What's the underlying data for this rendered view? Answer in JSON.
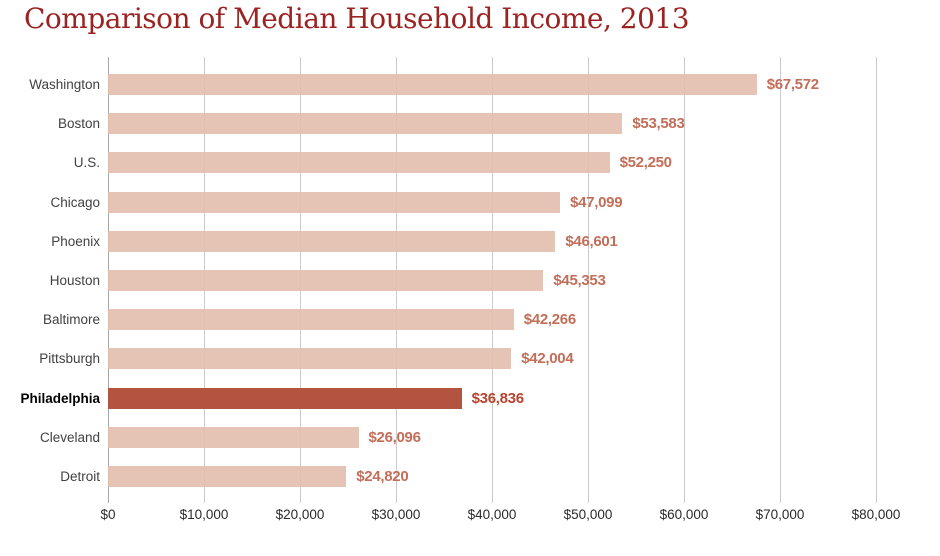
{
  "title": "Comparison of Median Household Income, 2013",
  "colors": {
    "title_text": "#9b2423",
    "bar_default": "#e5c4b5",
    "bar_highlight": "#b25440",
    "value_label_default": "#c26e58",
    "value_label_highlight": "#b8432e",
    "gridline": "#cccccc",
    "axis_line": "#a6a6a6",
    "category_label": "#414141"
  },
  "chart_data": {
    "type": "bar",
    "orientation": "horizontal",
    "title": "Comparison of Median Household Income, 2013",
    "categories": [
      "Washington",
      "Boston",
      "U.S.",
      "Chicago",
      "Phoenix",
      "Houston",
      "Baltimore",
      "Pittsburgh",
      "Philadelphia",
      "Cleveland",
      "Detroit"
    ],
    "values": [
      67572,
      53583,
      52250,
      47099,
      46601,
      45353,
      42266,
      42004,
      36836,
      26096,
      24820
    ],
    "value_labels": [
      "$67,572",
      "$53,583",
      "$52,250",
      "$47,099",
      "$46,601",
      "$45,353",
      "$42,266",
      "$42,004",
      "$36,836",
      "$26,096",
      "$24,820"
    ],
    "highlight_category": "Philadelphia",
    "xlabel": "",
    "ylabel": "",
    "xlim": [
      0,
      80000
    ],
    "x_ticks": [
      0,
      10000,
      20000,
      30000,
      40000,
      50000,
      60000,
      70000,
      80000
    ],
    "x_tick_labels": [
      "$0",
      "$10,000",
      "$20,000",
      "$30,000",
      "$40,000",
      "$50,000",
      "$60,000",
      "$70,000",
      "$80,000"
    ],
    "grid": "vertical",
    "legend": "none"
  }
}
